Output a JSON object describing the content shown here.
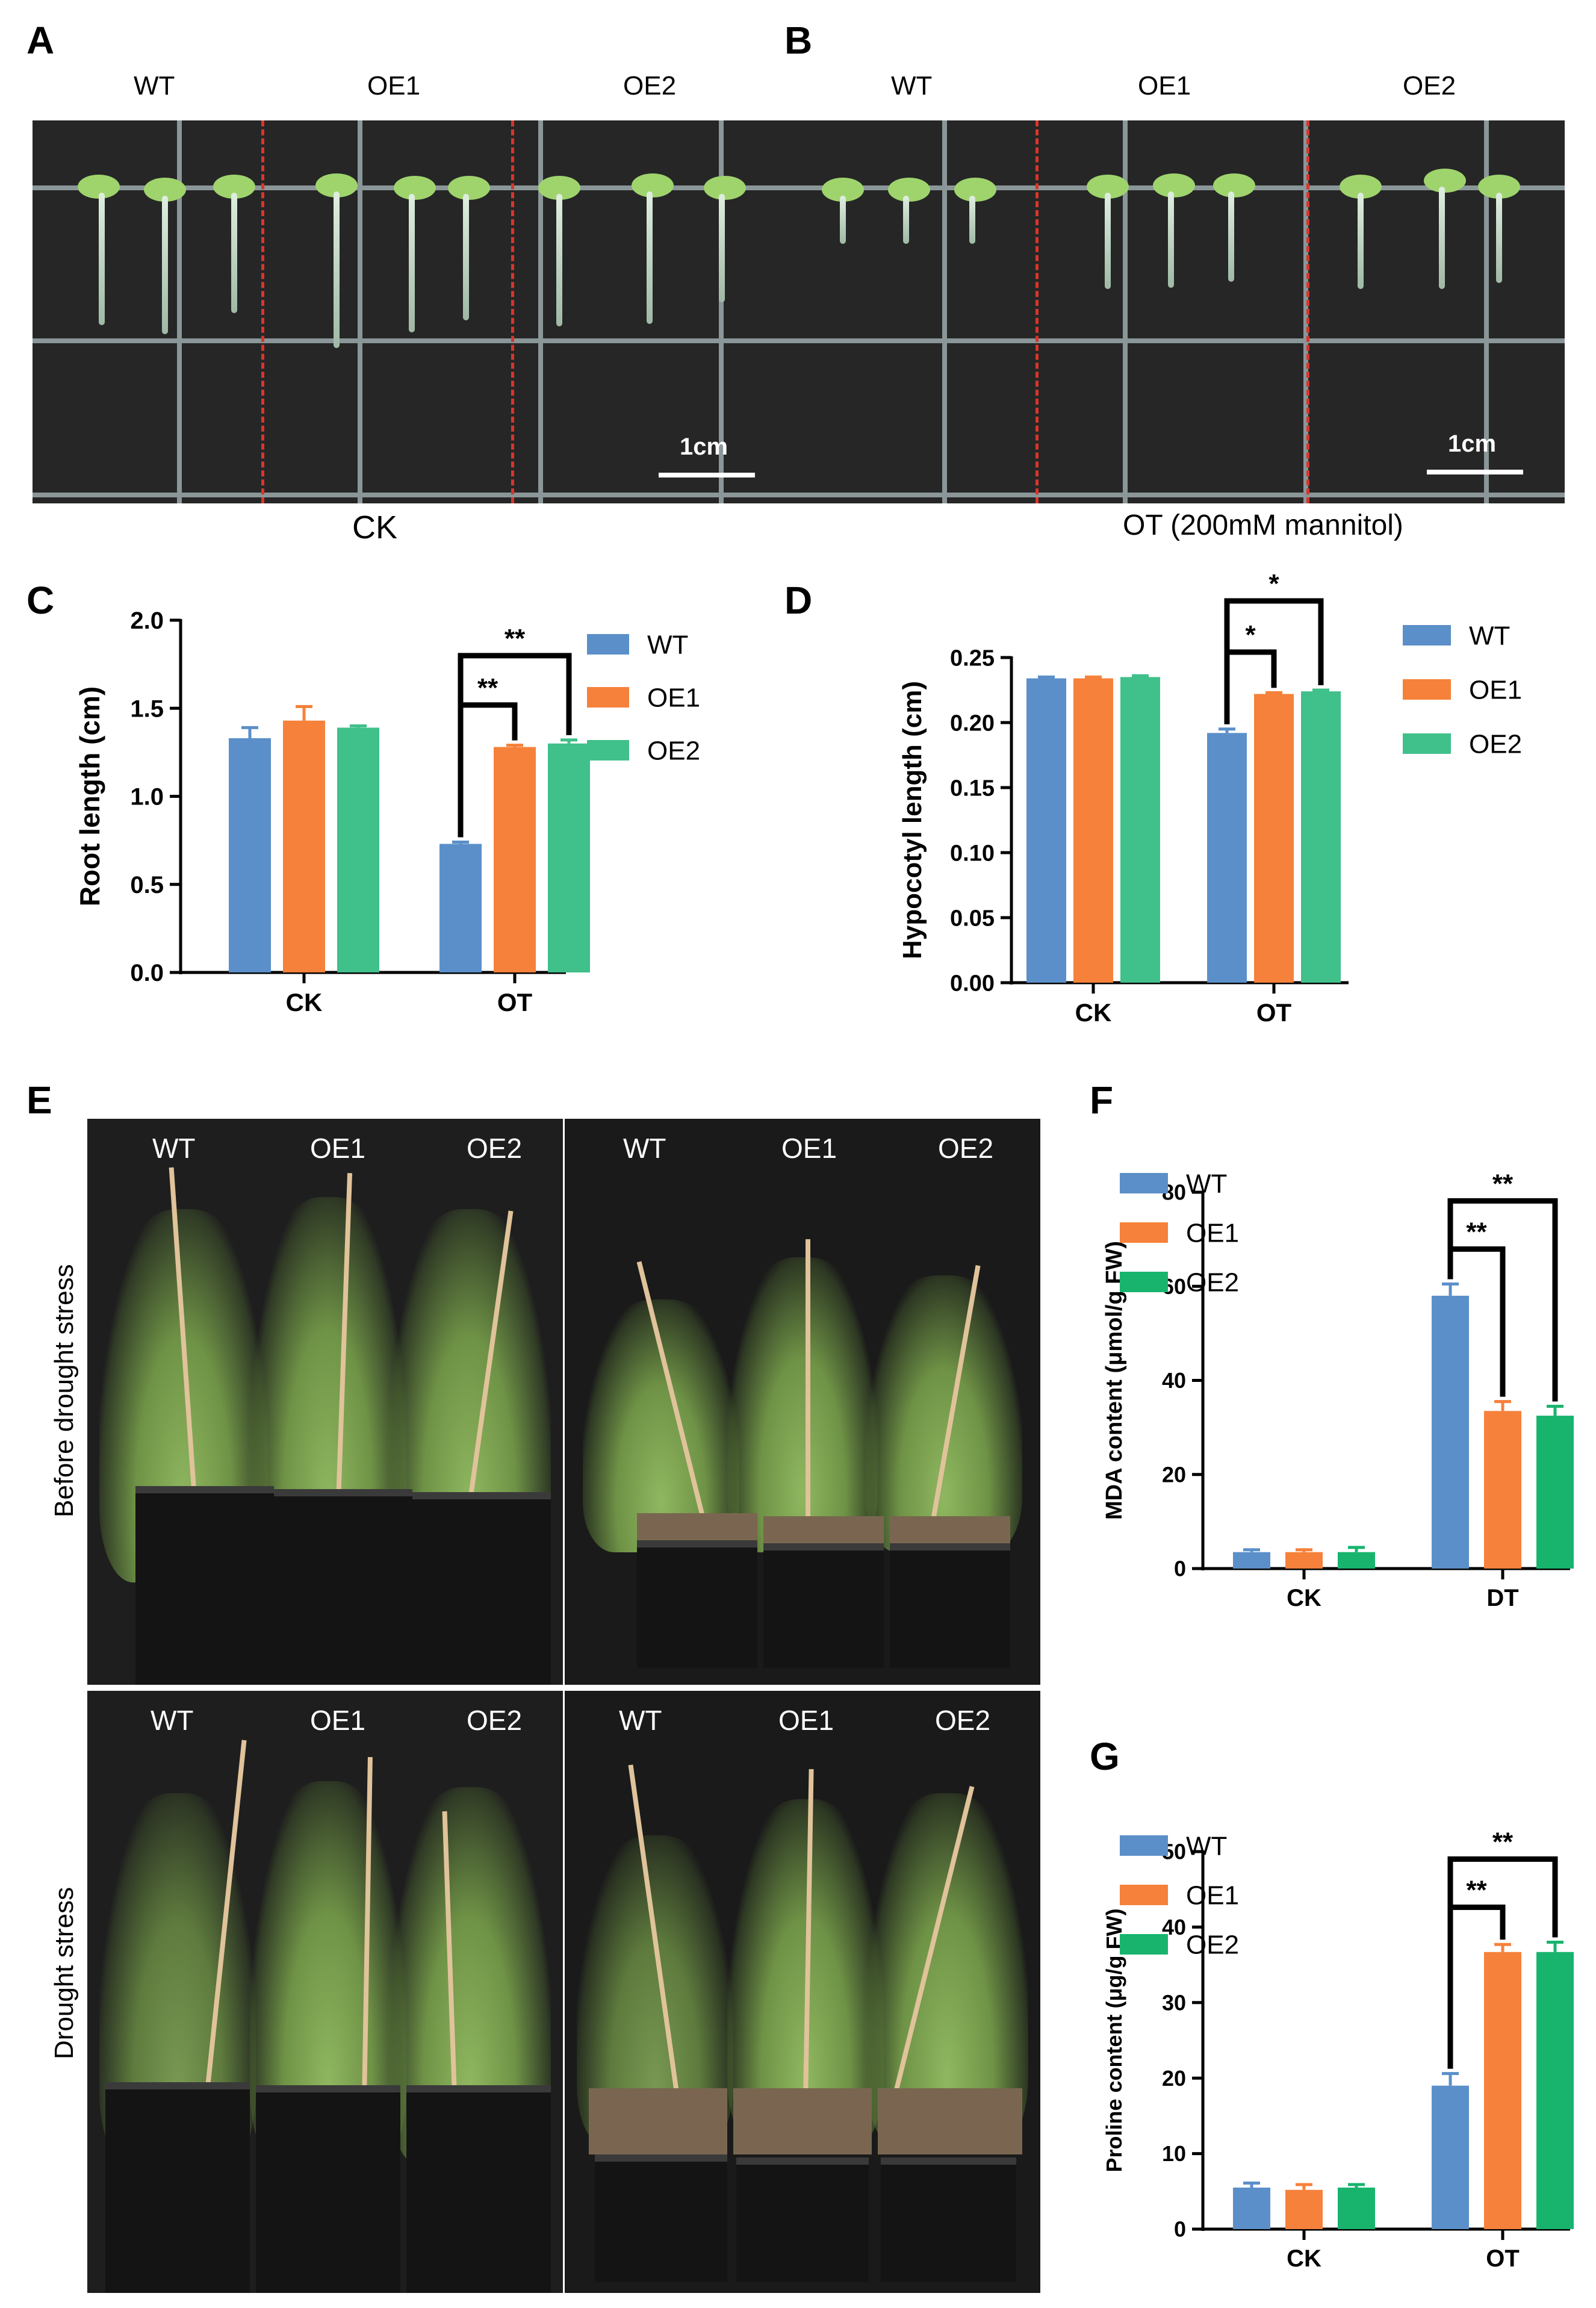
{
  "panels": {
    "A": "A",
    "B": "B",
    "C": "C",
    "D": "D",
    "E": "E",
    "F": "F",
    "G": "G"
  },
  "seedlings_A": {
    "genotypes": [
      "WT",
      "OE1",
      "OE2"
    ],
    "condition": "CK",
    "scale_bar": "1cm"
  },
  "seedlings_B": {
    "genotypes": [
      "WT",
      "OE1",
      "OE2"
    ],
    "condition": "OT (200mM mannitol)",
    "scale_bar": "1cm"
  },
  "photo_E": {
    "genotypes": [
      "WT",
      "OE1",
      "OE2"
    ],
    "row_labels": [
      "Before drought stress",
      "Drought stress"
    ]
  },
  "colors": {
    "WT": "#5b8fc9",
    "OE1": "#f6813a",
    "OE2": "#40c08a",
    "OE2_alt": "#18b46e"
  },
  "chart_data": [
    {
      "id": "C",
      "type": "bar",
      "categories": [
        "CK",
        "OT"
      ],
      "ylabel": "Root length (cm)",
      "ylim": [
        0,
        2.0
      ],
      "yticks": [
        "0.0",
        "0.5",
        "1.0",
        "1.5",
        "2.0"
      ],
      "series": [
        {
          "name": "WT",
          "values": [
            1.33,
            0.73
          ],
          "errors": [
            0.06,
            0.01
          ]
        },
        {
          "name": "OE1",
          "values": [
            1.43,
            1.28
          ],
          "errors": [
            0.08,
            0.01
          ]
        },
        {
          "name": "OE2",
          "values": [
            1.39,
            1.3
          ],
          "errors": [
            0.01,
            0.02
          ]
        }
      ],
      "significance": [
        {
          "category": "OT",
          "from": "WT",
          "to": "OE1",
          "label": "**"
        },
        {
          "category": "OT",
          "from": "WT",
          "to": "OE2",
          "label": "**"
        }
      ],
      "legend": "right"
    },
    {
      "id": "D",
      "type": "bar",
      "categories": [
        "CK",
        "OT"
      ],
      "ylabel": "Hypocotyl length (cm)",
      "ylim": [
        0,
        0.25
      ],
      "yticks": [
        "0.00",
        "0.05",
        "0.10",
        "0.15",
        "0.20",
        "0.25"
      ],
      "series": [
        {
          "name": "WT",
          "values": [
            0.234,
            0.192
          ],
          "errors": [
            0.001,
            0.003
          ]
        },
        {
          "name": "OE1",
          "values": [
            0.234,
            0.222
          ],
          "errors": [
            0.001,
            0.001
          ]
        },
        {
          "name": "OE2",
          "values": [
            0.235,
            0.224
          ],
          "errors": [
            0.001,
            0.001
          ]
        }
      ],
      "significance": [
        {
          "category": "OT",
          "from": "WT",
          "to": "OE1",
          "label": "*"
        },
        {
          "category": "OT",
          "from": "WT",
          "to": "OE2",
          "label": "*"
        }
      ],
      "legend": "right"
    },
    {
      "id": "F",
      "type": "bar",
      "categories": [
        "CK",
        "DT"
      ],
      "ylabel": "MDA content (μmol/g FW)",
      "ylim": [
        0,
        80
      ],
      "yticks": [
        "0",
        "20",
        "40",
        "60",
        "80"
      ],
      "series": [
        {
          "name": "WT",
          "values": [
            3.5,
            58
          ],
          "errors": [
            0.5,
            2.5
          ]
        },
        {
          "name": "OE1",
          "values": [
            3.5,
            33.5
          ],
          "errors": [
            0.5,
            2.0
          ]
        },
        {
          "name": "OE2",
          "values": [
            3.5,
            32.5
          ],
          "errors": [
            1.0,
            2.0
          ]
        }
      ],
      "significance": [
        {
          "category": "DT",
          "from": "WT",
          "to": "OE1",
          "label": "**"
        },
        {
          "category": "DT",
          "from": "WT",
          "to": "OE2",
          "label": "**"
        }
      ],
      "legend": "top-left"
    },
    {
      "id": "G",
      "type": "bar",
      "categories": [
        "CK",
        "OT"
      ],
      "ylabel": "Proline content (μg/g FW)",
      "ylim": [
        0,
        50
      ],
      "yticks": [
        "0",
        "10",
        "20",
        "30",
        "40",
        "50"
      ],
      "series": [
        {
          "name": "WT",
          "values": [
            5.5,
            19
          ],
          "errors": [
            0.6,
            1.6
          ]
        },
        {
          "name": "OE1",
          "values": [
            5.2,
            36.7
          ],
          "errors": [
            0.7,
            1.0
          ]
        },
        {
          "name": "OE2",
          "values": [
            5.5,
            36.7
          ],
          "errors": [
            0.4,
            1.3
          ]
        }
      ],
      "significance": [
        {
          "category": "OT",
          "from": "WT",
          "to": "OE1",
          "label": "**"
        },
        {
          "category": "OT",
          "from": "WT",
          "to": "OE2",
          "label": "**"
        }
      ],
      "legend": "top-left"
    }
  ]
}
